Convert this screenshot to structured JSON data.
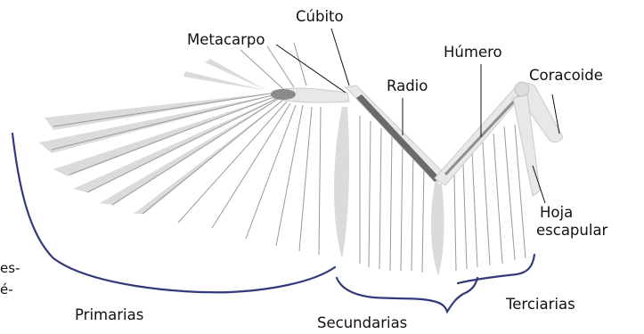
{
  "labels": {
    "cubito": "Cúbito",
    "metacarpo": "Metacarpo",
    "radio": "Radio",
    "humero": "Húmero",
    "coracoide": "Coracoide",
    "hoja_line1": "Hoja",
    "hoja_line2": "escapular",
    "primarias": "Primarias",
    "secundarias": "Secundarias",
    "terciarias": "Terciarias"
  },
  "cut_text": {
    "line1": "es-",
    "line2": "é-"
  },
  "colors": {
    "brace": "#333a7a",
    "feather": "#d7d7d7",
    "bone_dark": "#555555"
  }
}
